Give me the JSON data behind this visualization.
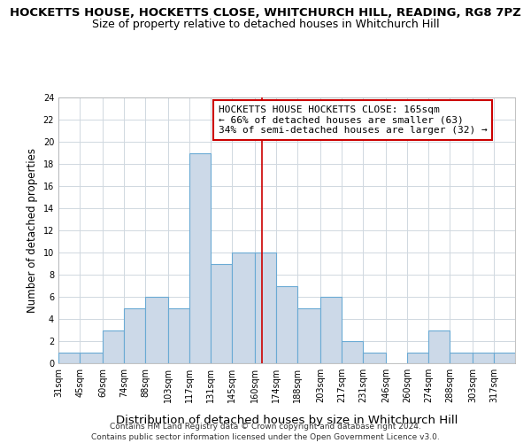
{
  "title": "HOCKETTS HOUSE, HOCKETTS CLOSE, WHITCHURCH HILL, READING, RG8 7PZ",
  "subtitle": "Size of property relative to detached houses in Whitchurch Hill",
  "xlabel": "Distribution of detached houses by size in Whitchurch Hill",
  "ylabel": "Number of detached properties",
  "bin_labels": [
    "31sqm",
    "45sqm",
    "60sqm",
    "74sqm",
    "88sqm",
    "103sqm",
    "117sqm",
    "131sqm",
    "145sqm",
    "160sqm",
    "174sqm",
    "188sqm",
    "203sqm",
    "217sqm",
    "231sqm",
    "246sqm",
    "260sqm",
    "274sqm",
    "288sqm",
    "303sqm",
    "317sqm"
  ],
  "bin_edges": [
    31,
    45,
    60,
    74,
    88,
    103,
    117,
    131,
    145,
    160,
    174,
    188,
    203,
    217,
    231,
    246,
    260,
    274,
    288,
    303,
    317,
    331
  ],
  "counts": [
    1,
    1,
    3,
    5,
    6,
    5,
    19,
    9,
    10,
    10,
    7,
    5,
    6,
    2,
    1,
    0,
    1,
    3,
    1,
    1,
    1
  ],
  "bar_facecolor": "#ccd9e8",
  "bar_edgecolor": "#6aaad4",
  "vline_x": 165,
  "vline_color": "#cc0000",
  "annotation_line1": "HOCKETTS HOUSE HOCKETTS CLOSE: 165sqm",
  "annotation_line2": "← 66% of detached houses are smaller (63)",
  "annotation_line3": "34% of semi-detached houses are larger (32) →",
  "ylim": [
    0,
    24
  ],
  "yticks": [
    0,
    2,
    4,
    6,
    8,
    10,
    12,
    14,
    16,
    18,
    20,
    22,
    24
  ],
  "grid_color": "#d0d8e0",
  "background_color": "#ffffff",
  "footer": "Contains HM Land Registry data © Crown copyright and database right 2024.\nContains public sector information licensed under the Open Government Licence v3.0.",
  "title_fontsize": 9.5,
  "subtitle_fontsize": 9,
  "xlabel_fontsize": 9.5,
  "ylabel_fontsize": 8.5,
  "tick_fontsize": 7,
  "annotation_fontsize": 8,
  "footer_fontsize": 6.5
}
